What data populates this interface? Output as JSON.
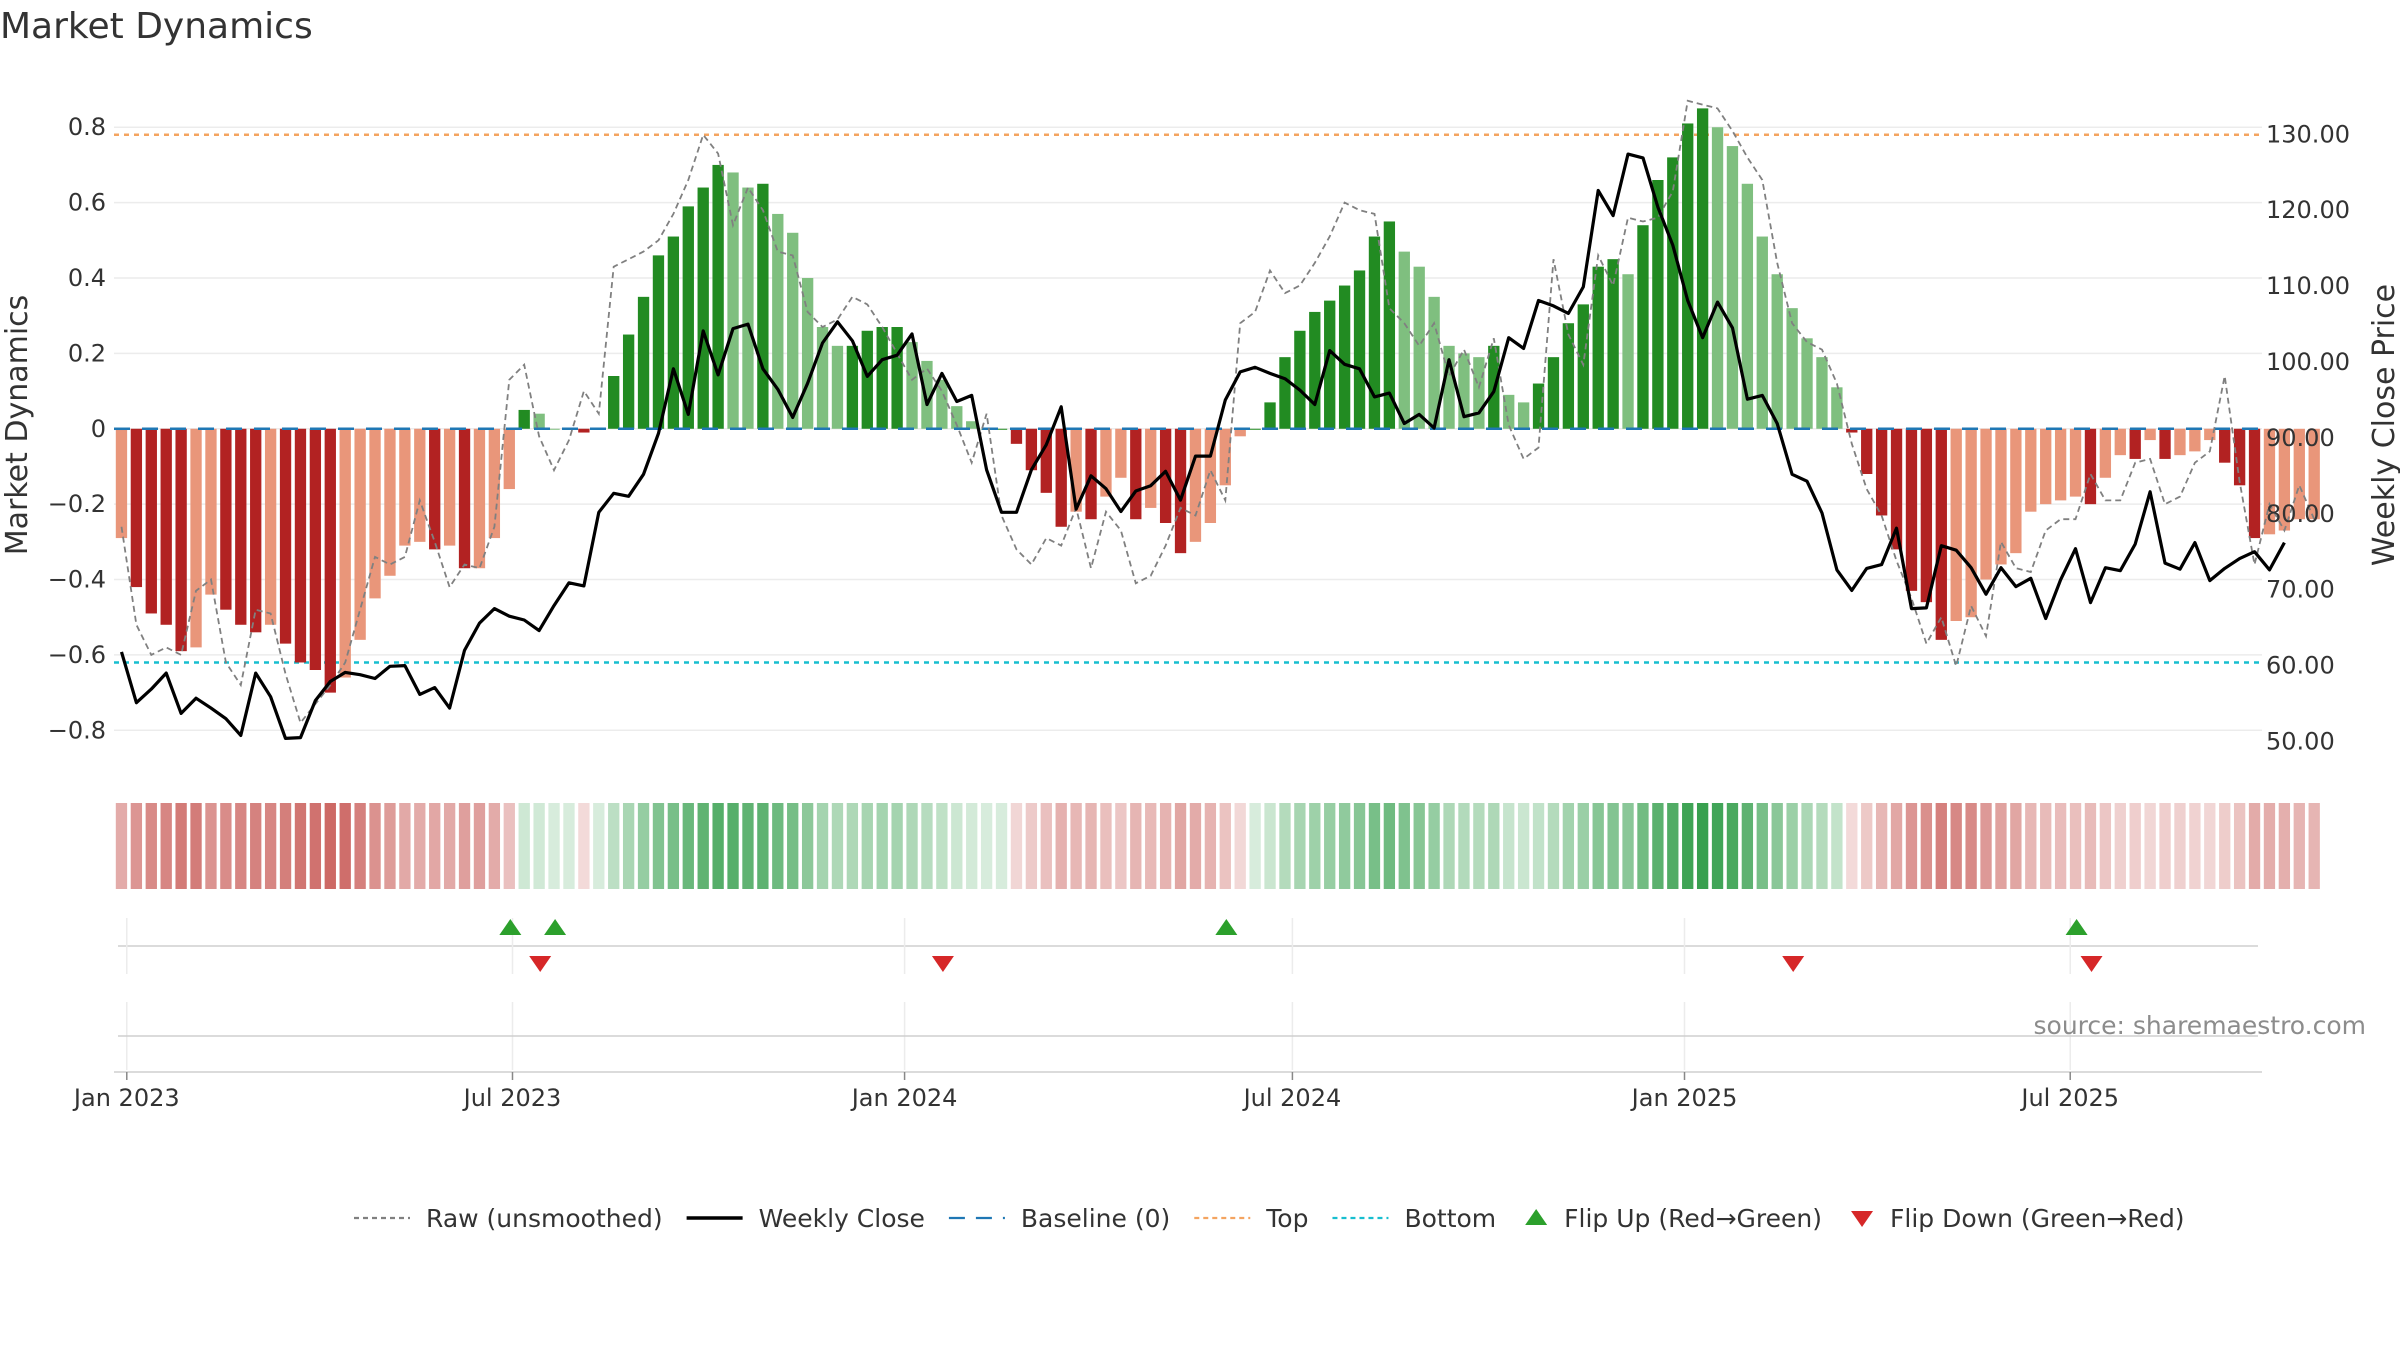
{
  "chart_data": {
    "type": "bar",
    "title": "Market Dynamics",
    "ylabel": "Market Dynamics",
    "y2label": "Weekly Close Price",
    "ylim": [
      -0.9,
      0.92
    ],
    "y2lim": [
      46.5,
      136.9
    ],
    "yticks": [
      -0.8,
      -0.6,
      -0.4,
      -0.2,
      0,
      0.2,
      0.4,
      0.6,
      0.8
    ],
    "ytick_labels": [
      "−0.8",
      "−0.6",
      "−0.4",
      "−0.2",
      "0",
      "0.2",
      "0.4",
      "0.6",
      "0.8"
    ],
    "y2ticks": [
      50,
      60,
      70,
      80,
      90,
      100,
      110,
      120,
      130
    ],
    "y2tick_labels": [
      "50.00",
      "60.00",
      "70.00",
      "80.00",
      "90.00",
      "100.00",
      "110.00",
      "120.00",
      "130.00"
    ],
    "x_start": "2022-12-26",
    "x_end": "2025-09-29",
    "xtick_dates": [
      "2023-01-01",
      "2023-07-01",
      "2024-01-01",
      "2024-07-01",
      "2025-01-01",
      "2025-07-01"
    ],
    "xtick_labels": [
      "Jan 2023",
      "Jul 2023",
      "Jan 2024",
      "Jul 2024",
      "Jan 2025",
      "Jul 2025"
    ],
    "top_level": 0.78,
    "bottom_level": -0.62,
    "baseline": 0,
    "grid": true,
    "legend_position": "bottom-center",
    "source_note": "source: sharemaestro.com",
    "colors": {
      "strong_green": "#228b22",
      "light_green": "#7fbf7f",
      "strong_red": "#b22222",
      "light_red": "#e9967a",
      "raw": "#808080",
      "close": "#000000",
      "baseline": "#1f77b4",
      "top": "#f4a460",
      "bottom": "#17becf",
      "flip_up": "#2ca02c",
      "flip_down": "#d62728"
    },
    "weekly_smoothed": [
      -0.29,
      -0.42,
      -0.49,
      -0.52,
      -0.59,
      -0.58,
      -0.44,
      -0.48,
      -0.52,
      -0.54,
      -0.52,
      -0.57,
      -0.62,
      -0.64,
      -0.7,
      -0.66,
      -0.56,
      -0.45,
      -0.39,
      -0.31,
      -0.3,
      -0.32,
      -0.31,
      -0.37,
      -0.37,
      -0.29,
      -0.16,
      0.05,
      0.04,
      0.0,
      0.0,
      -0.01,
      0.0,
      0.14,
      0.25,
      0.35,
      0.46,
      0.51,
      0.59,
      0.64,
      0.7,
      0.68,
      0.64,
      0.65,
      0.57,
      0.52,
      0.4,
      0.27,
      0.22,
      0.22,
      0.26,
      0.27,
      0.27,
      0.23,
      0.18,
      0.13,
      0.06,
      0.02,
      0.0,
      0.0,
      -0.04,
      -0.11,
      -0.17,
      -0.26,
      -0.22,
      -0.24,
      -0.18,
      -0.13,
      -0.24,
      -0.21,
      -0.25,
      -0.33,
      -0.3,
      -0.25,
      -0.15,
      -0.02,
      0.0,
      0.07,
      0.19,
      0.26,
      0.31,
      0.34,
      0.38,
      0.42,
      0.51,
      0.55,
      0.47,
      0.43,
      0.35,
      0.22,
      0.2,
      0.19,
      0.22,
      0.09,
      0.07,
      0.12,
      0.19,
      0.28,
      0.33,
      0.43,
      0.45,
      0.41,
      0.54,
      0.66,
      0.72,
      0.81,
      0.85,
      0.8,
      0.75,
      0.65,
      0.51,
      0.41,
      0.32,
      0.24,
      0.19,
      0.11,
      -0.01,
      -0.12,
      -0.23,
      -0.32,
      -0.43,
      -0.46,
      -0.56,
      -0.51,
      -0.5,
      -0.4,
      -0.36,
      -0.33,
      -0.22,
      -0.2,
      -0.19,
      -0.18,
      -0.2,
      -0.13,
      -0.07,
      -0.08,
      -0.03,
      -0.08,
      -0.07,
      -0.06,
      -0.03,
      -0.09,
      -0.15,
      -0.29,
      -0.28,
      -0.27,
      -0.24,
      -0.24
    ],
    "weekly_raw": [
      -0.26,
      -0.52,
      -0.6,
      -0.58,
      -0.6,
      -0.43,
      -0.4,
      -0.62,
      -0.68,
      -0.48,
      -0.49,
      -0.65,
      -0.78,
      -0.73,
      -0.68,
      -0.62,
      -0.48,
      -0.34,
      -0.36,
      -0.34,
      -0.19,
      -0.3,
      -0.42,
      -0.36,
      -0.37,
      -0.26,
      0.13,
      0.17,
      -0.02,
      -0.11,
      -0.03,
      0.1,
      0.04,
      0.43,
      0.45,
      0.47,
      0.5,
      0.57,
      0.66,
      0.78,
      0.73,
      0.54,
      0.64,
      0.58,
      0.47,
      0.46,
      0.31,
      0.27,
      0.29,
      0.35,
      0.33,
      0.27,
      0.2,
      0.13,
      0.16,
      0.1,
      0.01,
      -0.09,
      0.04,
      -0.23,
      -0.32,
      -0.36,
      -0.29,
      -0.31,
      -0.21,
      -0.37,
      -0.22,
      -0.27,
      -0.41,
      -0.39,
      -0.31,
      -0.21,
      -0.23,
      -0.11,
      -0.19,
      0.28,
      0.31,
      0.42,
      0.36,
      0.38,
      0.44,
      0.51,
      0.6,
      0.58,
      0.57,
      0.32,
      0.28,
      0.22,
      0.28,
      0.14,
      0.21,
      0.11,
      0.24,
      0.01,
      -0.08,
      -0.05,
      0.45,
      0.25,
      0.17,
      0.46,
      0.38,
      0.56,
      0.55,
      0.56,
      0.63,
      0.87,
      0.86,
      0.85,
      0.79,
      0.72,
      0.66,
      0.44,
      0.28,
      0.23,
      0.21,
      0.12,
      -0.04,
      -0.16,
      -0.23,
      -0.35,
      -0.45,
      -0.57,
      -0.5,
      -0.63,
      -0.47,
      -0.55,
      -0.3,
      -0.37,
      -0.38,
      -0.27,
      -0.24,
      -0.24,
      -0.12,
      -0.19,
      -0.19,
      -0.09,
      -0.08,
      -0.2,
      -0.18,
      -0.09,
      -0.06,
      0.14,
      -0.14,
      -0.36,
      -0.2,
      -0.27,
      -0.15,
      -0.24,
      -0.23
    ],
    "weekly_close": [
      61.8,
      55.1,
      56.9,
      59.0,
      53.7,
      55.7,
      54.4,
      53.0,
      50.8,
      59.0,
      55.9,
      50.4,
      50.5,
      55.4,
      57.9,
      59.1,
      58.8,
      58.3,
      59.9,
      60.0,
      56.2,
      57.1,
      54.4,
      62.0,
      65.6,
      67.5,
      66.5,
      66.0,
      64.6,
      67.9,
      70.9,
      70.5,
      80.2,
      82.7,
      82.3,
      85.2,
      90.6,
      99.1,
      93.1,
      104.1,
      98.3,
      104.4,
      105.0,
      99.1,
      96.4,
      92.7,
      97.2,
      102.5,
      105.3,
      102.8,
      98.1,
      100.3,
      100.9,
      103.7,
      94.4,
      98.5,
      94.8,
      95.6,
      85.8,
      80.2,
      80.2,
      85.8,
      89.1,
      94.1,
      80.6,
      85.0,
      83.3,
      80.3,
      83.0,
      83.7,
      85.6,
      81.8,
      87.6,
      87.6,
      95.0,
      98.7,
      99.3,
      98.5,
      97.8,
      96.3,
      94.4,
      101.5,
      99.7,
      99.1,
      95.4,
      95.9,
      91.9,
      93.1,
      91.3,
      100.3,
      92.8,
      93.3,
      96.1,
      103.2,
      101.8,
      108.1,
      107.4,
      106.4,
      109.9,
      122.6,
      119.3,
      127.4,
      126.9,
      120.4,
      115.4,
      108.1,
      103.2,
      107.9,
      104.5,
      95.1,
      95.6,
      91.9,
      85.2,
      84.3,
      80.1,
      72.6,
      69.9,
      72.8,
      73.3,
      78.1,
      67.5,
      67.6,
      75.8,
      75.2,
      72.9,
      69.4,
      72.9,
      70.4,
      71.5,
      66.2,
      71.3,
      75.4,
      68.3,
      72.9,
      72.5,
      76.0,
      82.9,
      73.5,
      72.7,
      76.2,
      71.2,
      72.8,
      74.1,
      75.0,
      72.6,
      76.2
    ],
    "flip_up_dates": [
      "2023-06-30",
      "2023-07-21",
      "2024-05-31",
      "2025-07-04"
    ],
    "flip_down_dates": [
      "2023-07-14",
      "2024-01-19",
      "2025-02-21",
      "2025-07-11"
    ],
    "legend": [
      {
        "key": "raw",
        "label": "Raw (unsmoothed)",
        "style": "dotted-line"
      },
      {
        "key": "close",
        "label": "Weekly Close",
        "style": "solid-line"
      },
      {
        "key": "baseline",
        "label": "Baseline (0)",
        "style": "dashed-line"
      },
      {
        "key": "top",
        "label": "Top",
        "style": "dotted-line"
      },
      {
        "key": "bottom",
        "label": "Bottom",
        "style": "dotted-line"
      },
      {
        "key": "flip_up",
        "label": "Flip Up (Red→Green)",
        "style": "triangle-up"
      },
      {
        "key": "flip_down",
        "label": "Flip Down (Green→Red)",
        "style": "triangle-down"
      }
    ]
  }
}
